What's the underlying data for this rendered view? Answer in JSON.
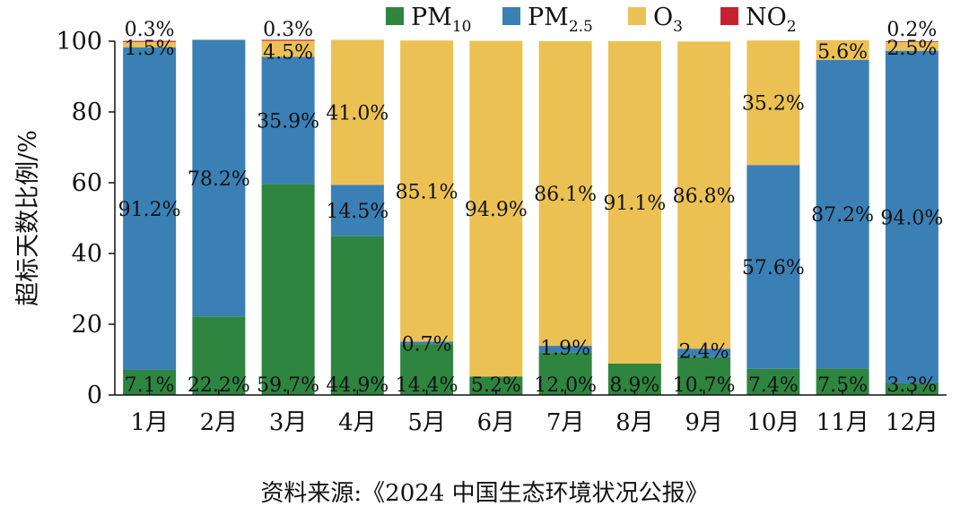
{
  "chart_data": {
    "type": "bar",
    "stacked": true,
    "categories": [
      "1月",
      "2月",
      "3月",
      "4月",
      "5月",
      "6月",
      "7月",
      "8月",
      "9月",
      "10月",
      "11月",
      "12月"
    ],
    "ylabel": "超标天数比例/%",
    "xlabel": "",
    "ylim": [
      0,
      100
    ],
    "yticks": [
      0,
      20,
      40,
      60,
      80,
      100
    ],
    "legend_position": "top",
    "series": [
      {
        "name": "PM10",
        "base": "PM",
        "sub": "10",
        "color": "#2e8540",
        "values": [
          7.1,
          22.2,
          59.7,
          44.9,
          14.4,
          5.2,
          12.0,
          8.9,
          10.7,
          7.4,
          7.5,
          3.3
        ],
        "labels": [
          "7.1%",
          "22.2%",
          "59.7%",
          "44.9%",
          "14.4%",
          "5.2%",
          "12.0%",
          "8.9%",
          "10.7%",
          "7.4%",
          "7.5%",
          "3.3%"
        ]
      },
      {
        "name": "PM2.5",
        "base": "PM",
        "sub": "2.5",
        "color": "#3a80b5",
        "values": [
          91.2,
          78.2,
          35.9,
          14.5,
          0.7,
          0,
          1.9,
          0,
          2.4,
          57.6,
          87.2,
          94.0
        ],
        "labels": [
          "91.2%",
          "78.2%",
          "35.9%",
          "14.5%",
          "0.7%",
          "",
          "1.9%",
          "",
          "2.4%",
          "57.6%",
          "87.2%",
          "94.0%"
        ]
      },
      {
        "name": "O3",
        "base": "O",
        "sub": "3",
        "color": "#ecc154",
        "values": [
          1.5,
          0,
          4.5,
          41.0,
          85.1,
          94.9,
          86.1,
          91.1,
          86.8,
          35.2,
          5.6,
          2.5
        ],
        "labels": [
          "1.5%",
          "",
          "4.5%",
          "41.0%",
          "85.1%",
          "94.9%",
          "86.1%",
          "91.1%",
          "86.8%",
          "35.2%",
          "5.6%",
          "2.5%"
        ]
      },
      {
        "name": "NO2",
        "base": "NO",
        "sub": "2",
        "color": "#c8202f",
        "values": [
          0.3,
          0,
          0.3,
          0,
          0,
          0,
          0,
          0,
          0,
          0,
          0,
          0.2
        ],
        "labels": [
          "0.3%",
          "",
          "0.3%",
          "",
          "",
          "",
          "",
          "",
          "",
          "",
          "",
          "0.2%"
        ]
      }
    ]
  },
  "source": "资料来源:《2024 中国生态环境状况公报》"
}
